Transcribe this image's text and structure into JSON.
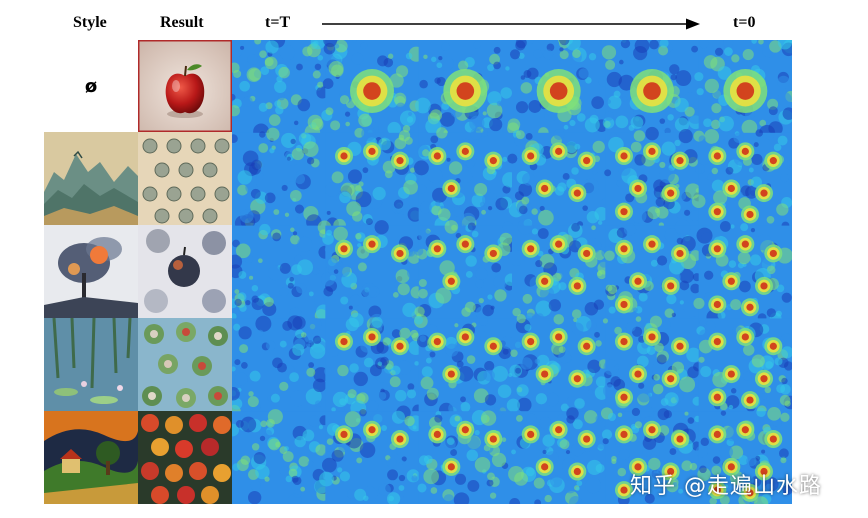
{
  "header": {
    "style": "Style",
    "result": "Result",
    "time_start": "t=T",
    "time_end": "t=0"
  },
  "rows": [
    {
      "style_label": "ø",
      "style": "none",
      "result": "single red apple"
    },
    {
      "style": "chinese ink landscape",
      "result": "apple pattern"
    },
    {
      "style": "ink smoke painting",
      "result": "dark apples"
    },
    {
      "style": "water lilies",
      "result": "green apples on lilies"
    },
    {
      "style": "expressionist landscape",
      "result": "colorful apples"
    }
  ],
  "colors": {
    "deep_blue": "#1a3fb8",
    "mid_blue": "#2f8fe8",
    "cyan": "#35c9e8",
    "green": "#7fe07a",
    "yellow": "#f2e23a",
    "red": "#d02818"
  },
  "watermark": "知乎 @走遍山水路"
}
